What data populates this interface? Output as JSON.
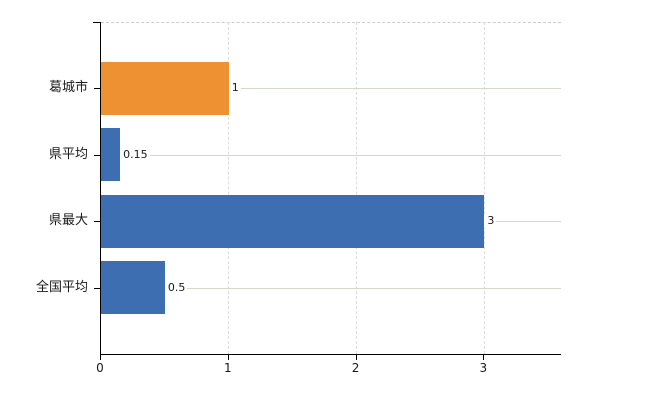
{
  "chart_data": {
    "type": "bar",
    "orientation": "horizontal",
    "title": "",
    "xlabel": "",
    "ylabel": "",
    "categories": [
      "葛城市",
      "県平均",
      "県最大",
      "全国平均"
    ],
    "values": [
      1,
      0.15,
      3,
      0.5
    ],
    "value_labels": [
      "1",
      "0.15",
      "3",
      "0.5"
    ],
    "bar_colors": [
      "#ee9133",
      "#3d6eb2",
      "#3d6eb2",
      "#3d6eb2"
    ],
    "x_ticks": [
      "0",
      "1",
      "2",
      "3"
    ],
    "x_tick_values": [
      0,
      1,
      2,
      3
    ],
    "xlim": [
      0,
      3.6
    ],
    "legend": "none",
    "grid": {
      "vertical": "dashed",
      "horizontal": "solid",
      "vertical_color": "#dcdcdc",
      "horizontal_color": "#d2dacc"
    }
  },
  "colors": {
    "highlight_bar": "#ee9133",
    "default_bar": "#3d6eb2",
    "axis": "#000000",
    "text": "#1a1a1a",
    "background": "#ffffff"
  }
}
